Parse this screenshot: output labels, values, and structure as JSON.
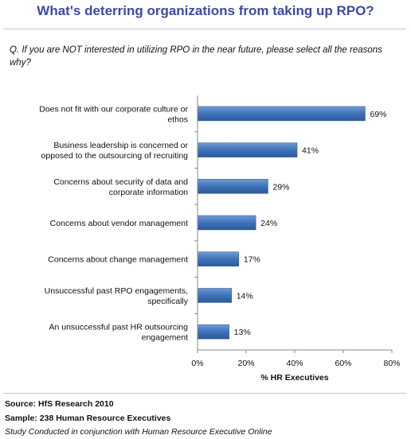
{
  "page_title": "What's deterring organizations from taking up RPO?",
  "question": "Q. If you are NOT interested in utilizing RPO in the near future, please select all the reasons why?",
  "chart_data": {
    "type": "bar",
    "orientation": "horizontal",
    "categories": [
      [
        "Does not fit with our corporate culture or",
        "ethos"
      ],
      [
        "Business leadership is concerned or",
        "opposed to the outsourcing of recruiting"
      ],
      [
        "Concerns about security of data and",
        "corporate information"
      ],
      [
        "Concerns about vendor management"
      ],
      [
        "Concerns about change management"
      ],
      [
        "Unsuccessful past RPO engagements,",
        "specifically"
      ],
      [
        "An unsuccessful past  HR outsourcing",
        "engagement"
      ]
    ],
    "values": [
      69,
      41,
      29,
      24,
      17,
      14,
      13
    ],
    "value_labels": [
      "69%",
      "41%",
      "29%",
      "24%",
      "17%",
      "14%",
      "13%"
    ],
    "xlim": [
      0,
      80
    ],
    "xticks": [
      0,
      20,
      40,
      60,
      80
    ],
    "xtick_labels": [
      "0%",
      "20%",
      "40%",
      "60%",
      "80%"
    ],
    "xlabel": "% HR Executives",
    "bar_color": "#3f72b8",
    "grid": false,
    "legend": false
  },
  "footer": {
    "source": "Source:  HfS  Research 2010",
    "sample": "Sample:  238 Human Resource Executives",
    "note": "Study Conducted in conjunction with Human Resource Executive Online"
  }
}
